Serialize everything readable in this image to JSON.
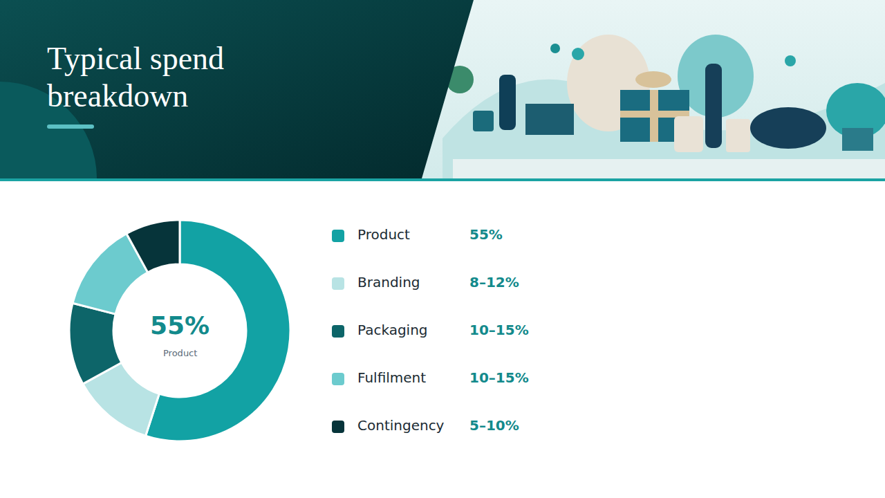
{
  "header": {
    "title": "Typical spend breakdown"
  },
  "chart_data": {
    "type": "pie",
    "categories": [
      "Product",
      "Branding",
      "Packaging",
      "Fulfilment",
      "Contingency"
    ],
    "values": [
      55,
      12,
      12,
      13,
      8
    ],
    "printed_shares": [
      "55%",
      "8–12%",
      "10–15%",
      "10–15%",
      "5–10%"
    ],
    "colors": [
      "#12a2a4",
      "#b8e3e4",
      "#0d6569",
      "#6ccbce",
      "#06343a"
    ],
    "center": {
      "text": "55%",
      "label": "Product"
    }
  }
}
